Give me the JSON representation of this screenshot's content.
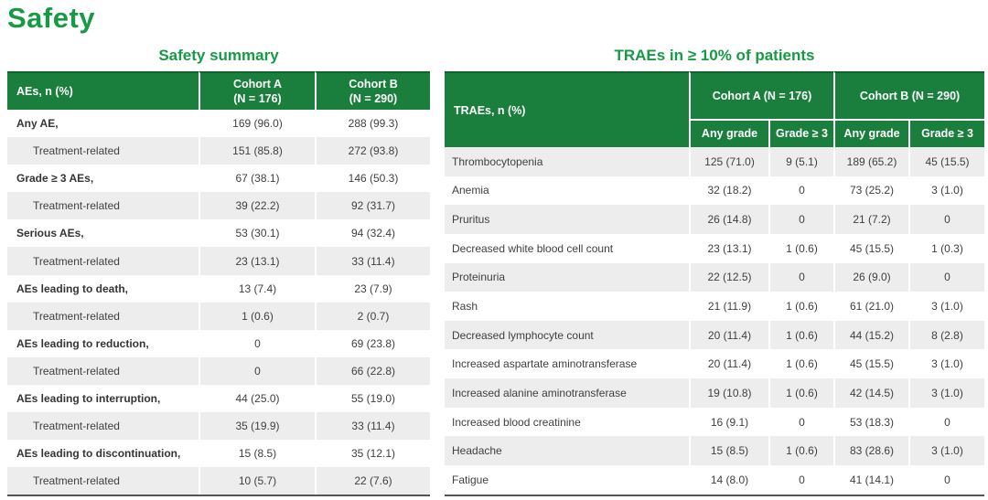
{
  "page": {
    "title": "Safety"
  },
  "colors": {
    "green_header": "#1A7F3C",
    "green_header_top": "#11632E",
    "green_title": "#179A46",
    "stripe": "#EDEDED",
    "text": "#3F3F3F",
    "label_text": "#353535",
    "bottom_border": "#545454"
  },
  "safety_summary": {
    "title": "Safety summary",
    "header": {
      "col0": "AEs, n (%)",
      "col1": "Cohort A\n(N = 176)",
      "col2": "Cohort B\n(N = 290)"
    },
    "rows": [
      {
        "type": "main",
        "label": "Any AE,",
        "a": "169 (96.0)",
        "b": "288 (99.3)"
      },
      {
        "type": "sub",
        "label": "Treatment-related",
        "a": "151 (85.8)",
        "b": "272 (93.8)"
      },
      {
        "type": "main",
        "label": "Grade ≥ 3 AEs,",
        "a": "67 (38.1)",
        "b": "146 (50.3)"
      },
      {
        "type": "sub",
        "label": "Treatment-related",
        "a": "39 (22.2)",
        "b": "92 (31.7)"
      },
      {
        "type": "main",
        "label": "Serious AEs,",
        "a": "53 (30.1)",
        "b": "94 (32.4)"
      },
      {
        "type": "sub",
        "label": "Treatment-related",
        "a": "23 (13.1)",
        "b": "33 (11.4)"
      },
      {
        "type": "main",
        "label": "AEs leading to death,",
        "a": "13 (7.4)",
        "b": "23 (7.9)"
      },
      {
        "type": "sub",
        "label": "Treatment-related",
        "a": "1 (0.6)",
        "b": "2 (0.7)"
      },
      {
        "type": "main",
        "label": "AEs leading to reduction,",
        "a": "0",
        "b": "69 (23.8)"
      },
      {
        "type": "sub",
        "label": "Treatment-related",
        "a": "0",
        "b": "66 (22.8)"
      },
      {
        "type": "main",
        "label": "AEs leading to interruption,",
        "a": "44 (25.0)",
        "b": "55 (19.0)"
      },
      {
        "type": "sub",
        "label": "Treatment-related",
        "a": "35 (19.9)",
        "b": "33 (11.4)"
      },
      {
        "type": "main",
        "label": "AEs leading to discontinuation,",
        "a": "15 (8.5)",
        "b": "35 (12.1)"
      },
      {
        "type": "sub",
        "label": "Treatment-related",
        "a": "10 (5.7)",
        "b": "22 (7.6)"
      }
    ]
  },
  "traes": {
    "title": "TRAEs in ≥ 10% of patients",
    "header": {
      "col0": "TRAEs, n (%)",
      "group_a": "Cohort A (N = 176)",
      "group_b": "Cohort B (N = 290)",
      "sub_any_a": "Any grade",
      "sub_g3_a": "Grade ≥ 3",
      "sub_any_b": "Any grade",
      "sub_g3_b": "Grade ≥ 3"
    },
    "rows": [
      {
        "label": "Thrombocytopenia",
        "a_any": "125 (71.0)",
        "a_g3": "9 (5.1)",
        "b_any": "189 (65.2)",
        "b_g3": "45 (15.5)"
      },
      {
        "label": "Anemia",
        "a_any": "32 (18.2)",
        "a_g3": "0",
        "b_any": "73 (25.2)",
        "b_g3": "3 (1.0)"
      },
      {
        "label": "Pruritus",
        "a_any": "26 (14.8)",
        "a_g3": "0",
        "b_any": "21 (7.2)",
        "b_g3": "0"
      },
      {
        "label": "Decreased white blood cell count",
        "a_any": "23 (13.1)",
        "a_g3": "1 (0.6)",
        "b_any": "45 (15.5)",
        "b_g3": "1 (0.3)"
      },
      {
        "label": "Proteinuria",
        "a_any": "22 (12.5)",
        "a_g3": "0",
        "b_any": "26 (9.0)",
        "b_g3": "0"
      },
      {
        "label": "Rash",
        "a_any": "21 (11.9)",
        "a_g3": "1 (0.6)",
        "b_any": "61 (21.0)",
        "b_g3": "3 (1.0)"
      },
      {
        "label": "Decreased lymphocyte count",
        "a_any": "20 (11.4)",
        "a_g3": "1 (0.6)",
        "b_any": "44 (15.2)",
        "b_g3": "8 (2.8)"
      },
      {
        "label": "Increased aspartate aminotransferase",
        "a_any": "20 (11.4)",
        "a_g3": "1 (0.6)",
        "b_any": "45 (15.5)",
        "b_g3": "3 (1.0)"
      },
      {
        "label": "Increased alanine aminotransferase",
        "a_any": "19 (10.8)",
        "a_g3": "1 (0.6)",
        "b_any": "42 (14.5)",
        "b_g3": "3 (1.0)"
      },
      {
        "label": "Increased blood creatinine",
        "a_any": "16 (9.1)",
        "a_g3": "0",
        "b_any": "53 (18.3)",
        "b_g3": "0"
      },
      {
        "label": "Headache",
        "a_any": "15 (8.5)",
        "a_g3": "1 (0.6)",
        "b_any": "83 (28.6)",
        "b_g3": "3 (1.0)"
      },
      {
        "label": "Fatigue",
        "a_any": "14 (8.0)",
        "a_g3": "0",
        "b_any": "41 (14.1)",
        "b_g3": "0"
      }
    ]
  }
}
